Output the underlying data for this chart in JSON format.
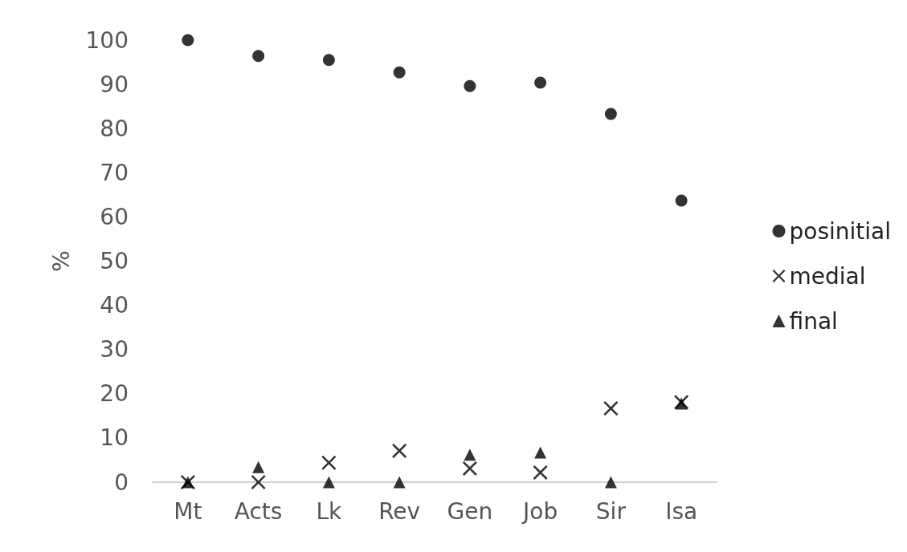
{
  "chart_data": {
    "type": "scatter",
    "ylabel": "%",
    "categories": [
      "Mt",
      "Acts",
      "Lk",
      "Rev",
      "Gen",
      "Job",
      "Sir",
      "Isa"
    ],
    "series": [
      {
        "name": "posinitial",
        "color": "#000000",
        "marker": "circle",
        "values": [
          100,
          96.4,
          95.5,
          92.7,
          89.6,
          90.4,
          83.3,
          63.7
        ]
      },
      {
        "name": "medial",
        "color": "#000000",
        "marker": "cross",
        "values": [
          0,
          0,
          4.4,
          7.1,
          3.1,
          2.2,
          16.7,
          18.1
        ]
      },
      {
        "name": "final",
        "color": "#000000",
        "marker": "triangle",
        "values": [
          0,
          3.4,
          0,
          0,
          6.2,
          6.7,
          0,
          17.8
        ]
      }
    ],
    "ylim": [
      0,
      100
    ],
    "yticks": [
      0,
      10,
      20,
      30,
      40,
      50,
      60,
      70,
      80,
      90,
      100
    ],
    "grid": false,
    "legend": "right"
  }
}
